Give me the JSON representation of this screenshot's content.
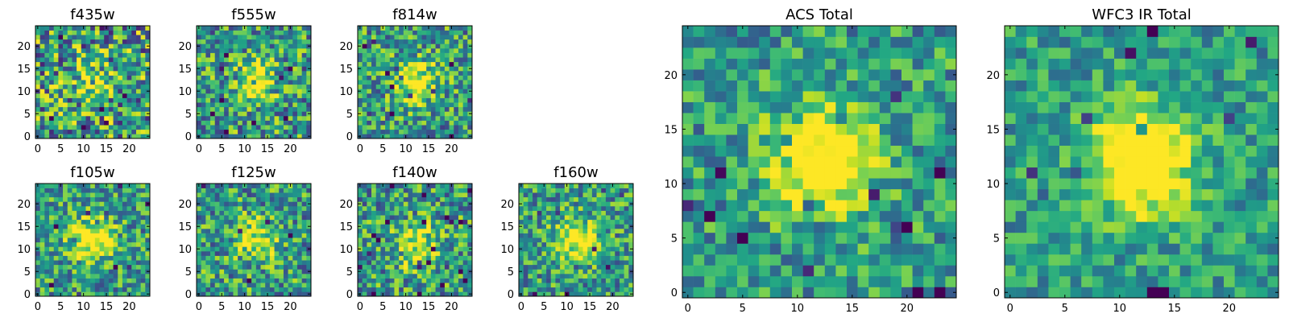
{
  "figure": {
    "description_free": true
  },
  "chart_data": [
    {
      "type": "heatmap",
      "title": "f435w",
      "xlim": [
        0,
        24
      ],
      "ylim": [
        0,
        24
      ],
      "xticks": [
        "0",
        "5",
        "10",
        "15",
        "20"
      ],
      "yticks": [
        "0",
        "5",
        "10",
        "15",
        "20"
      ],
      "grid": false,
      "colormap": "viridis",
      "peak": [
        12,
        12
      ],
      "peak_strength": 0.25,
      "noise": 0.9,
      "seed": 11
    },
    {
      "type": "heatmap",
      "title": "f555w",
      "xlim": [
        0,
        24
      ],
      "ylim": [
        0,
        24
      ],
      "xticks": [
        "0",
        "5",
        "10",
        "15",
        "20"
      ],
      "yticks": [
        "0",
        "5",
        "10",
        "15",
        "20"
      ],
      "grid": false,
      "colormap": "viridis",
      "peak": [
        12,
        12
      ],
      "peak_strength": 0.45,
      "noise": 0.75,
      "seed": 23
    },
    {
      "type": "heatmap",
      "title": "f814w",
      "xlim": [
        0,
        24
      ],
      "ylim": [
        0,
        24
      ],
      "xticks": [
        "0",
        "5",
        "10",
        "15",
        "20"
      ],
      "yticks": [
        "0",
        "5",
        "10",
        "15",
        "20"
      ],
      "grid": false,
      "colormap": "viridis",
      "peak": [
        12,
        12
      ],
      "peak_strength": 0.55,
      "noise": 0.7,
      "seed": 37
    },
    {
      "type": "heatmap",
      "title": "f105w",
      "xlim": [
        0,
        24
      ],
      "ylim": [
        0,
        24
      ],
      "xticks": [
        "0",
        "5",
        "10",
        "15",
        "20"
      ],
      "yticks": [
        "0",
        "5",
        "10",
        "15",
        "20"
      ],
      "grid": false,
      "colormap": "viridis",
      "peak": [
        12,
        12
      ],
      "peak_strength": 0.6,
      "noise": 0.65,
      "seed": 41
    },
    {
      "type": "heatmap",
      "title": "f125w",
      "xlim": [
        0,
        24
      ],
      "ylim": [
        0,
        24
      ],
      "xticks": [
        "0",
        "5",
        "10",
        "15",
        "20"
      ],
      "yticks": [
        "0",
        "5",
        "10",
        "15",
        "20"
      ],
      "grid": false,
      "colormap": "viridis",
      "peak": [
        13,
        12
      ],
      "peak_strength": 0.45,
      "noise": 0.7,
      "seed": 53
    },
    {
      "type": "heatmap",
      "title": "f140w",
      "xlim": [
        0,
        24
      ],
      "ylim": [
        0,
        24
      ],
      "xticks": [
        "0",
        "5",
        "10",
        "15",
        "20"
      ],
      "yticks": [
        "0",
        "5",
        "10",
        "15",
        "20"
      ],
      "grid": false,
      "colormap": "viridis",
      "peak": [
        12,
        11
      ],
      "peak_strength": 0.45,
      "noise": 0.7,
      "seed": 67
    },
    {
      "type": "heatmap",
      "title": "f160w",
      "xlim": [
        0,
        24
      ],
      "ylim": [
        0,
        24
      ],
      "xticks": [
        "0",
        "5",
        "10",
        "15",
        "20"
      ],
      "yticks": [
        "0",
        "5",
        "10",
        "15",
        "20"
      ],
      "grid": false,
      "colormap": "viridis",
      "peak": [
        12,
        12
      ],
      "peak_strength": 0.55,
      "noise": 0.65,
      "seed": 79
    },
    {
      "type": "heatmap",
      "title": "ACS Total",
      "xlim": [
        0,
        24
      ],
      "ylim": [
        0,
        24
      ],
      "xticks": [
        "0",
        "5",
        "10",
        "15",
        "20"
      ],
      "yticks": [
        "0",
        "5",
        "10",
        "15",
        "20"
      ],
      "grid": false,
      "colormap": "viridis",
      "peak": [
        12,
        12
      ],
      "peak_strength": 0.7,
      "noise": 0.55,
      "seed": 83
    },
    {
      "type": "heatmap",
      "title": "WFC3 IR Total",
      "xlim": [
        0,
        24
      ],
      "ylim": [
        0,
        24
      ],
      "xticks": [
        "0",
        "5",
        "10",
        "15",
        "20"
      ],
      "yticks": [
        "0",
        "5",
        "10",
        "15",
        "20"
      ],
      "grid": false,
      "colormap": "viridis",
      "peak": [
        12,
        12
      ],
      "peak_strength": 0.8,
      "noise": 0.45,
      "seed": 97
    }
  ]
}
